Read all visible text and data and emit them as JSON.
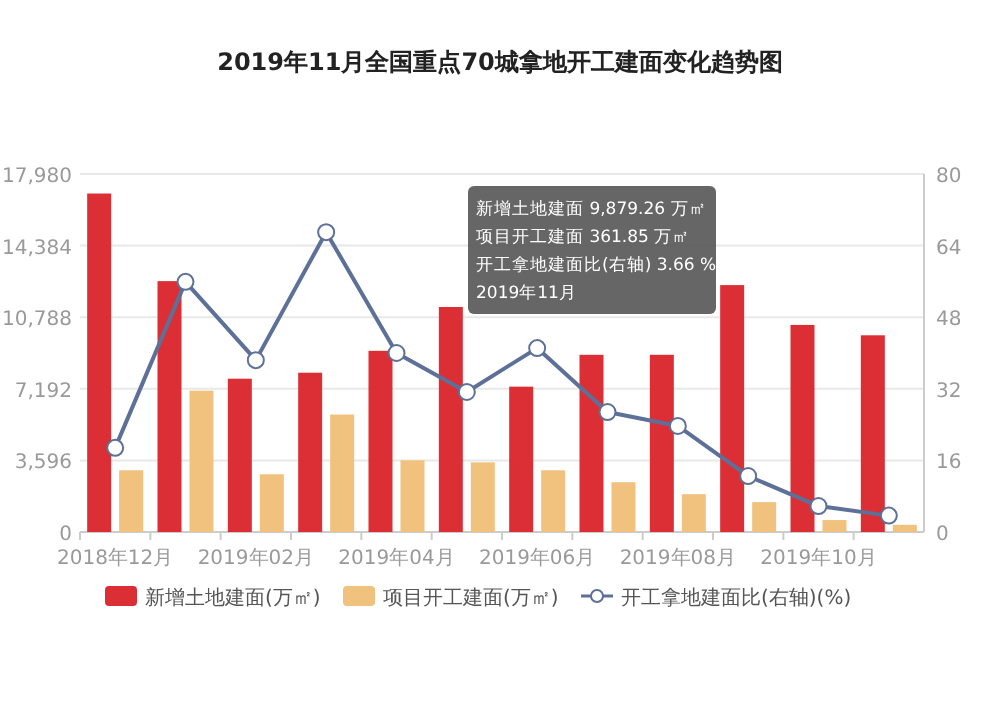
{
  "chart_data": {
    "type": "bar",
    "title": "2019年11月全国重点70城拿地开工建面变化趋势图",
    "categories": [
      "2018年12月",
      null,
      "2019年02月",
      null,
      "2019年04月",
      null,
      "2019年06月",
      null,
      "2019年08月",
      null,
      "2019年10月",
      null
    ],
    "series": [
      {
        "name": "新增土地建面(万㎡)",
        "color": "#dc2f35",
        "values": [
          17000,
          12600,
          7700,
          8000,
          9100,
          11300,
          7300,
          8900,
          8900,
          12400,
          10400,
          9879.26
        ]
      },
      {
        "name": "项目开工建面(万㎡)",
        "color": "#f0c27d",
        "values": [
          3100,
          7100,
          2900,
          5900,
          3600,
          3500,
          3100,
          2500,
          1900,
          1500,
          600,
          361.85
        ]
      },
      {
        "name": "开工拿地建面比(右轴)(%)",
        "color": "#5d7098",
        "type": "line",
        "axis": "y2",
        "marker": "circle",
        "values": [
          18.8,
          55.9,
          38.4,
          67,
          40,
          31.3,
          41.1,
          26.8,
          23.7,
          12.5,
          5.8,
          3.66
        ]
      }
    ],
    "ylim": [
      0,
      17980
    ],
    "yticks": [
      0,
      {
        "value": 3596,
        "label": "3,596"
      },
      {
        "value": 7192,
        "label": "7,192"
      },
      {
        "value": 10788,
        "label": "10,788"
      },
      {
        "value": 14384,
        "label": "14,384"
      },
      {
        "value": 17980,
        "label": "17,980"
      }
    ],
    "y2lim": [
      0,
      80
    ],
    "y2ticks": [
      0,
      16,
      32,
      48,
      64,
      80
    ],
    "grid": "y",
    "legend": "bottom",
    "annotations": [
      "新增土地建面 9,879.26 万㎡",
      "项目开工建面 361.85 万㎡",
      "开工拿地建面比(右轴) 3.66 %",
      "2019年11月"
    ]
  }
}
